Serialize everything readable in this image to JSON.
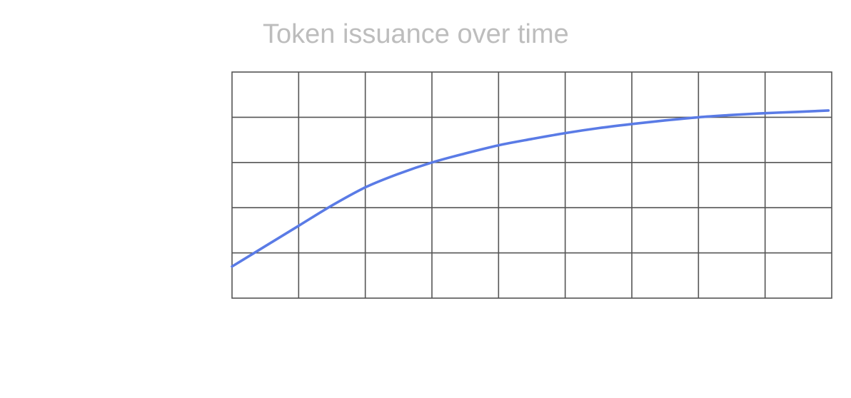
{
  "chart_data": {
    "type": "line",
    "title": "Token issuance over time",
    "xlabel": "",
    "ylabel": "",
    "xlim": [
      0,
      9
    ],
    "ylim": [
      0,
      5
    ],
    "grid": true,
    "x_divisions": 9,
    "y_divisions": 5,
    "legend": "none",
    "series": [
      {
        "color": "#5a7be6",
        "x": [
          0,
          0.5,
          1,
          1.5,
          2,
          2.5,
          3,
          3.5,
          4,
          4.5,
          5,
          5.5,
          6,
          6.5,
          7,
          7.5,
          8,
          8.5,
          8.95
        ],
        "values": [
          0.7,
          1.15,
          1.6,
          2.05,
          2.45,
          2.75,
          3.0,
          3.2,
          3.38,
          3.52,
          3.65,
          3.76,
          3.85,
          3.93,
          4.0,
          4.05,
          4.09,
          4.12,
          4.15
        ]
      }
    ]
  }
}
